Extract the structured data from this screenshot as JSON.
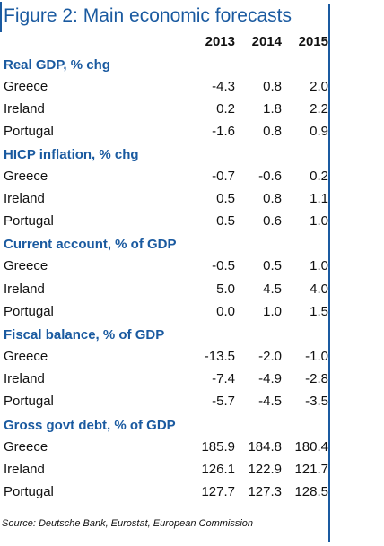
{
  "title": "Figure 2: Main economic forecasts",
  "years": [
    "2013",
    "2014",
    "2015"
  ],
  "sections": [
    {
      "heading": "Real GDP, % chg",
      "rows": [
        {
          "country": "Greece",
          "values": [
            "-4.3",
            "0.8",
            "2.0"
          ]
        },
        {
          "country": "Ireland",
          "values": [
            "0.2",
            "1.8",
            "2.2"
          ]
        },
        {
          "country": "Portugal",
          "values": [
            "-1.6",
            "0.8",
            "0.9"
          ]
        }
      ]
    },
    {
      "heading": "HICP inflation, % chg",
      "rows": [
        {
          "country": "Greece",
          "values": [
            "-0.7",
            "-0.6",
            "0.2"
          ]
        },
        {
          "country": "Ireland",
          "values": [
            "0.5",
            "0.8",
            "1.1"
          ]
        },
        {
          "country": "Portugal",
          "values": [
            "0.5",
            "0.6",
            "1.0"
          ]
        }
      ]
    },
    {
      "heading": "Current account, % of GDP",
      "rows": [
        {
          "country": "Greece",
          "values": [
            "-0.5",
            "0.5",
            "1.0"
          ]
        },
        {
          "country": "Ireland",
          "values": [
            "5.0",
            "4.5",
            "4.0"
          ]
        },
        {
          "country": "Portugal",
          "values": [
            "0.0",
            "1.0",
            "1.5"
          ]
        }
      ]
    },
    {
      "heading": "Fiscal balance, % of GDP",
      "rows": [
        {
          "country": "Greece",
          "values": [
            "-13.5",
            "-2.0",
            "-1.0"
          ]
        },
        {
          "country": "Ireland",
          "values": [
            "-7.4",
            "-4.9",
            "-2.8"
          ]
        },
        {
          "country": "Portugal",
          "values": [
            "-5.7",
            "-4.5",
            "-3.5"
          ]
        }
      ]
    },
    {
      "heading": "Gross govt debt, % of GDP",
      "rows": [
        {
          "country": "Greece",
          "values": [
            "185.9",
            "184.8",
            "180.4"
          ]
        },
        {
          "country": "Ireland",
          "values": [
            "126.1",
            "122.9",
            "121.7"
          ]
        },
        {
          "country": "Portugal",
          "values": [
            "127.7",
            "127.3",
            "128.5"
          ]
        }
      ]
    }
  ],
  "source": "Source: Deutsche Bank, Eurostat, European Commission",
  "colors": {
    "accent": "#1a5aa0",
    "shade": "#dfe6ef"
  }
}
